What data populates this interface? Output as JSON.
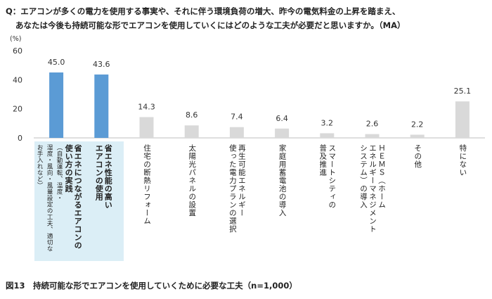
{
  "question": {
    "line1": "Q：エアコンが多くの電力を使用する事実や、それに伴う環境負荷の増大、昨今の電気料金の上昇を踏まえ、",
    "line2": "あなたは今後も持続可能な形でエアコンを使用していくにはどのような工夫が必要だと思いますか。（MA）"
  },
  "caption": "図13　持続可能な形でエアコンを使用していくために必要な工夫（n=1,000）",
  "chart_data": {
    "type": "bar",
    "ylabel": "(%)",
    "ylim": [
      0,
      60
    ],
    "yticks": [
      "0",
      "20",
      "40",
      "60"
    ],
    "grid": false,
    "categories": [
      {
        "lines": [
          "省エネにつながるエアコンの",
          "使い方の実践"
        ],
        "note": [
          "（自動運転、温度・",
          "湿度・風向・風量設定の工夫、適切な",
          "お手入れなど）"
        ],
        "highlight": true
      },
      {
        "lines": [
          "省エネ性能の高い",
          "エアコンの使用"
        ],
        "highlight": true
      },
      {
        "lines": [
          "住宅の断熱リフォーム"
        ]
      },
      {
        "lines": [
          "太陽光パネルの設置"
        ]
      },
      {
        "lines": [
          "再生可能エネルギー",
          "使った電力プランの選択"
        ]
      },
      {
        "lines": [
          "家庭用蓄電池の導入"
        ]
      },
      {
        "lines": [
          "スマートシティの",
          "普及推進"
        ]
      },
      {
        "lines": [
          "ＨＥＭＳ（ホーム",
          "エネルギーマネジメント",
          "システム）の導入"
        ]
      },
      {
        "lines": [
          "その他"
        ]
      },
      {
        "lines": [
          "特にない"
        ]
      }
    ],
    "values": [
      45.0,
      43.6,
      14.3,
      8.6,
      7.4,
      6.4,
      3.2,
      2.6,
      2.2,
      25.1
    ],
    "data_labels": [
      "45.0",
      "43.6",
      "14.3",
      "8.6",
      "7.4",
      "6.4",
      "3.2",
      "2.6",
      "2.2",
      "25.1"
    ],
    "colors": {
      "highlight": "#5b9bd5",
      "normal": "#d9d9d9",
      "highlight_bg": "#dbeef6",
      "axis": "#bfbfbf"
    }
  }
}
